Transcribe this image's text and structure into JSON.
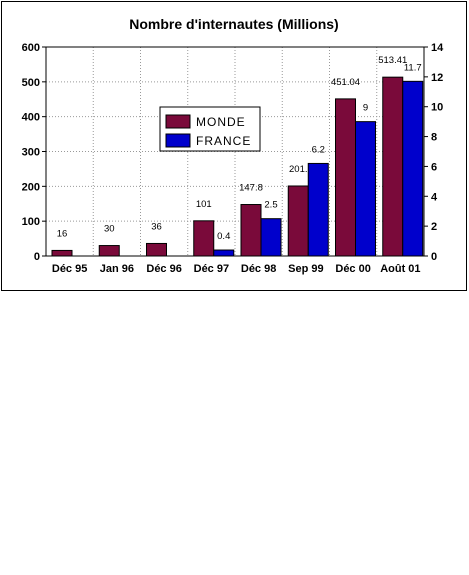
{
  "chart_data": {
    "type": "bar",
    "title": "Nombre d'internautes (Millions)",
    "categories": [
      "Déc 95",
      "Jan 96",
      "Déc 96",
      "Déc 97",
      "Déc 98",
      "Sep 99",
      "Déc 00",
      "Août 01"
    ],
    "series": [
      {
        "name": "MONDE",
        "axis": "left",
        "color": "#7a0a3a",
        "values": [
          16,
          30,
          36,
          101,
          147.8,
          201,
          451.04,
          513.41
        ],
        "labels": [
          "16",
          "30",
          "36",
          "101",
          "147.8",
          "201.",
          "451.04",
          "513.41"
        ]
      },
      {
        "name": "FRANCE",
        "axis": "right",
        "color": "#0000cc",
        "values": [
          null,
          null,
          null,
          0.4,
          2.5,
          6.2,
          9,
          11.7
        ],
        "labels": [
          "",
          "",
          "",
          "0.4",
          "2.5",
          "6.2",
          "9",
          "11.7"
        ]
      }
    ],
    "ylim_left": [
      0,
      600
    ],
    "yticks_left": [
      "0",
      "100",
      "200",
      "300",
      "400",
      "500",
      "600"
    ],
    "ylim_right": [
      0,
      14
    ],
    "yticks_right": [
      "0",
      "2",
      "4",
      "6",
      "8",
      "10",
      "12",
      "14"
    ],
    "grid": true,
    "legend_position": "center-left"
  }
}
